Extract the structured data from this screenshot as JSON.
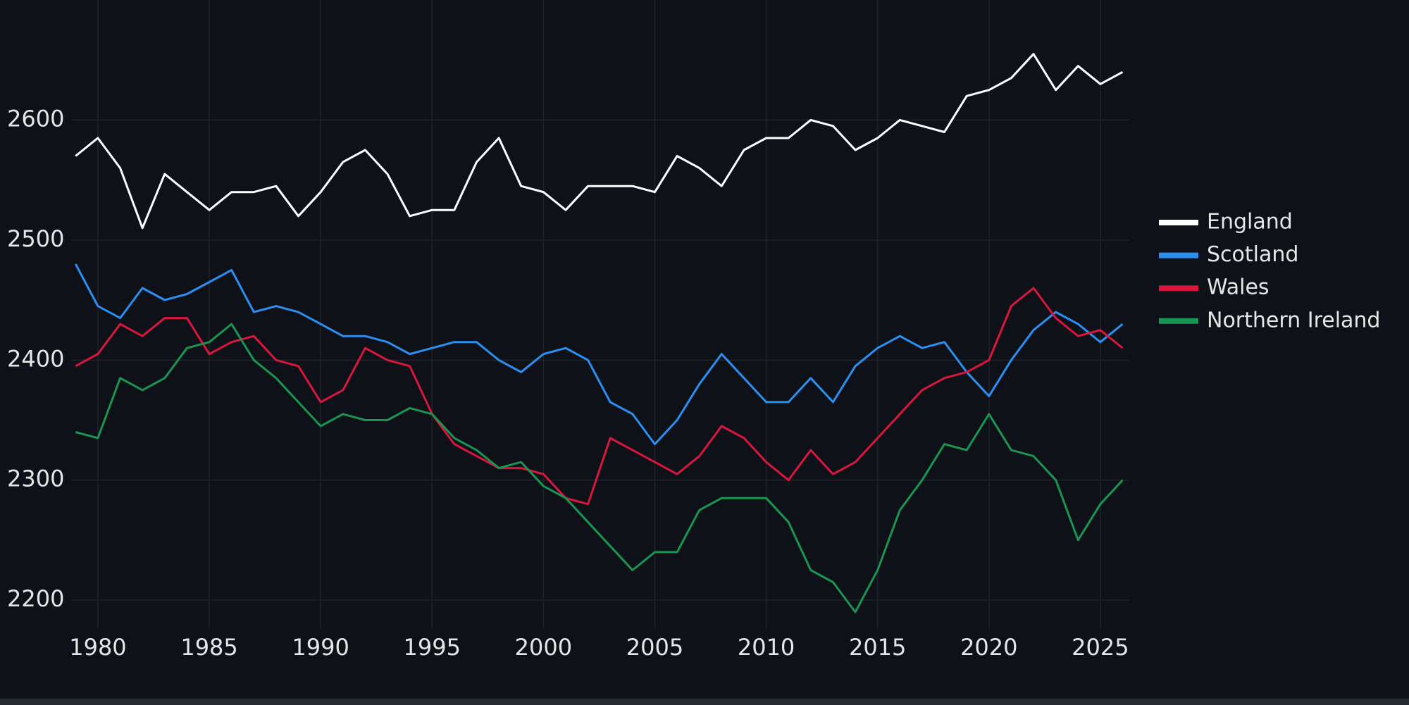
{
  "chart_data": {
    "type": "line",
    "x": [
      1979,
      1980,
      1981,
      1982,
      1983,
      1984,
      1985,
      1986,
      1987,
      1988,
      1989,
      1990,
      1991,
      1992,
      1993,
      1994,
      1995,
      1996,
      1997,
      1998,
      1999,
      2000,
      2001,
      2002,
      2003,
      2004,
      2005,
      2006,
      2007,
      2008,
      2009,
      2010,
      2011,
      2012,
      2013,
      2014,
      2015,
      2016,
      2017,
      2018,
      2019,
      2020,
      2021,
      2022,
      2023,
      2024,
      2025,
      2026
    ],
    "series": [
      {
        "name": "England",
        "color": "#ffffff",
        "values": [
          2570,
          2585,
          2560,
          2510,
          2555,
          2540,
          2525,
          2540,
          2540,
          2545,
          2520,
          2540,
          2565,
          2575,
          2555,
          2520,
          2525,
          2525,
          2565,
          2585,
          2545,
          2540,
          2525,
          2545,
          2545,
          2545,
          2540,
          2570,
          2560,
          2545,
          2575,
          2585,
          2585,
          2600,
          2595,
          2575,
          2585,
          2600,
          2595,
          2590,
          2620,
          2625,
          2635,
          2655,
          2625,
          2645,
          2630,
          2640
        ]
      },
      {
        "name": "Scotland",
        "color": "#2b8ff2",
        "values": [
          2480,
          2445,
          2435,
          2460,
          2450,
          2455,
          2465,
          2475,
          2440,
          2445,
          2440,
          2430,
          2420,
          2420,
          2415,
          2405,
          2410,
          2415,
          2415,
          2400,
          2390,
          2405,
          2410,
          2400,
          2365,
          2355,
          2330,
          2350,
          2380,
          2405,
          2385,
          2365,
          2365,
          2385,
          2365,
          2395,
          2410,
          2420,
          2410,
          2415,
          2390,
          2370,
          2400,
          2425,
          2440,
          2430,
          2415,
          2430
        ]
      },
      {
        "name": "Wales",
        "color": "#d9163d",
        "values": [
          2395,
          2405,
          2430,
          2420,
          2435,
          2435,
          2405,
          2415,
          2420,
          2400,
          2395,
          2365,
          2375,
          2410,
          2400,
          2395,
          2355,
          2330,
          2320,
          2310,
          2310,
          2305,
          2285,
          2280,
          2335,
          2325,
          2315,
          2305,
          2320,
          2345,
          2335,
          2315,
          2300,
          2325,
          2305,
          2315,
          2335,
          2355,
          2375,
          2385,
          2390,
          2400,
          2445,
          2460,
          2435,
          2420,
          2425,
          2410
        ]
      },
      {
        "name": "Northern Ireland",
        "color": "#1a9452",
        "values": [
          2340,
          2335,
          2385,
          2375,
          2385,
          2410,
          2415,
          2430,
          2400,
          2385,
          2365,
          2345,
          2355,
          2350,
          2350,
          2360,
          2355,
          2335,
          2325,
          2310,
          2315,
          2295,
          2285,
          2265,
          2245,
          2225,
          2240,
          2240,
          2275,
          2285,
          2285,
          2285,
          2265,
          2225,
          2215,
          2190,
          2225,
          2275,
          2300,
          2330,
          2325,
          2355,
          2325,
          2320,
          2300,
          2250,
          2280,
          2300
        ]
      }
    ],
    "xlim": [
      1978.8,
      2026.3
    ],
    "ylim": [
      2176,
      2700
    ],
    "xticks": [
      1980,
      1985,
      1990,
      1995,
      2000,
      2005,
      2010,
      2015,
      2020,
      2025
    ],
    "yticks": [
      2200,
      2300,
      2400,
      2500,
      2600
    ],
    "grid": true,
    "legend": "right"
  }
}
